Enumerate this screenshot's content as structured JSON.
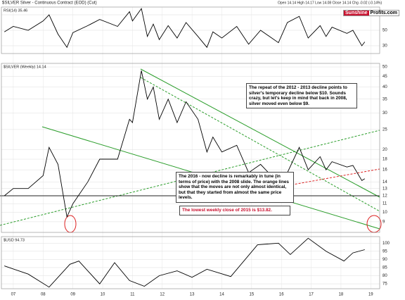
{
  "header": {
    "title": "$SILVER Silver - Continuous Contract (EOD) (Cut)",
    "quote": "Open 14.14 High 14.17 Low 14.08 Close 14.14 Chg -0.02 (-0.14%)"
  },
  "logo": {
    "first": "Sunshine",
    "second": "Profits.com"
  },
  "chart_data": [
    {
      "type": "line",
      "title": "RSI(14) 35.46",
      "color": "#000000",
      "xlim": [
        2006.6,
        2019.3
      ],
      "ylim": [
        20,
        80
      ],
      "yticks": [
        30,
        50,
        70
      ],
      "x": [
        2006.7,
        2007.0,
        2007.5,
        2008.0,
        2008.2,
        2008.5,
        2008.8,
        2009.0,
        2009.5,
        2009.9,
        2010.5,
        2010.9,
        2011.0,
        2011.3,
        2011.5,
        2011.7,
        2011.9,
        2012.2,
        2012.5,
        2012.8,
        2013.2,
        2013.5,
        2013.7,
        2014.0,
        2014.5,
        2014.9,
        2015.3,
        2015.9,
        2016.2,
        2016.6,
        2016.9,
        2017.3,
        2017.5,
        2017.7,
        2018.2,
        2018.4,
        2018.7,
        2018.8
      ],
      "values": [
        48,
        55,
        50,
        62,
        70,
        45,
        28,
        47,
        56,
        64,
        55,
        74,
        62,
        78,
        42,
        58,
        38,
        56,
        40,
        60,
        42,
        28,
        48,
        40,
        55,
        32,
        50,
        34,
        60,
        68,
        40,
        56,
        42,
        54,
        46,
        50,
        30,
        35
      ]
    },
    {
      "type": "line",
      "log": true,
      "title": "$SILVER (Weekly) 14.14",
      "color": "#000000",
      "xlim": [
        2006.6,
        2019.3
      ],
      "ylim": [
        8,
        52
      ],
      "yticks": [
        9,
        10,
        11,
        12,
        13,
        14,
        16,
        18,
        20,
        25,
        30,
        35,
        40,
        45,
        50
      ],
      "x": [
        2006.7,
        2007.0,
        2007.5,
        2008.0,
        2008.2,
        2008.5,
        2008.8,
        2009.0,
        2009.5,
        2009.9,
        2010.5,
        2010.9,
        2011.0,
        2011.3,
        2011.5,
        2011.7,
        2011.9,
        2012.2,
        2012.5,
        2012.8,
        2013.2,
        2013.5,
        2013.7,
        2014.0,
        2014.5,
        2014.9,
        2015.3,
        2015.9,
        2016.2,
        2016.6,
        2016.9,
        2017.3,
        2017.5,
        2017.7,
        2018.2,
        2018.4,
        2018.7,
        2018.8
      ],
      "values": [
        12,
        13,
        13,
        15,
        20.5,
        17,
        9.5,
        11,
        14,
        18,
        18,
        28,
        27,
        48,
        35,
        40,
        28,
        35,
        27,
        34,
        28,
        19.5,
        23,
        19.5,
        21,
        15.5,
        17,
        13.8,
        15.5,
        20.5,
        16,
        18.5,
        16,
        17.5,
        16.5,
        16.8,
        14.2,
        14.5
      ],
      "annotations": [
        "The repeat of the 2012 - 2013 decline points to silver's temporary decline below $10. Sounds crazy, but let's keep in mind that back in 2008, silver moved even below $9.",
        "The 2016 - now decline is remarkably in tune (in terms of price) with the 2008 slide. The orange lines show that the moves are not only almost identical, but that they started from almost the same price levels.",
        "The lowest weekly close of 2015 is $13.82."
      ]
    },
    {
      "type": "line",
      "title": "$USD 94.73",
      "color": "#000000",
      "xlim": [
        2006.6,
        2019.3
      ],
      "ylim": [
        72,
        104
      ],
      "yticks": [
        75,
        80,
        85,
        90,
        95,
        100
      ],
      "xticks": [
        {
          "value": 2007,
          "label": "07"
        },
        {
          "value": 2008,
          "label": "08"
        },
        {
          "value": 2009,
          "label": "09"
        },
        {
          "value": 2010,
          "label": "10"
        },
        {
          "value": 2011,
          "label": "11"
        },
        {
          "value": 2012,
          "label": "12"
        },
        {
          "value": 2013,
          "label": "13"
        },
        {
          "value": 2014,
          "label": "14"
        },
        {
          "value": 2015,
          "label": "15"
        },
        {
          "value": 2016,
          "label": "16"
        },
        {
          "value": 2017,
          "label": "17"
        },
        {
          "value": 2018,
          "label": "18"
        },
        {
          "value": 2019,
          "label": "19"
        }
      ],
      "x": [
        2006.7,
        2007.5,
        2008.2,
        2008.9,
        2009.2,
        2009.9,
        2010.4,
        2010.9,
        2011.4,
        2011.9,
        2012.5,
        2013.0,
        2013.5,
        2014.3,
        2015.2,
        2015.9,
        2016.3,
        2016.9,
        2017.5,
        2018.1,
        2018.4,
        2018.8
      ],
      "values": [
        86,
        81,
        73,
        87,
        89,
        75,
        88,
        77,
        73.5,
        80,
        83,
        79,
        84,
        79.5,
        99,
        100,
        93,
        103,
        95,
        89,
        94,
        96
      ]
    }
  ]
}
